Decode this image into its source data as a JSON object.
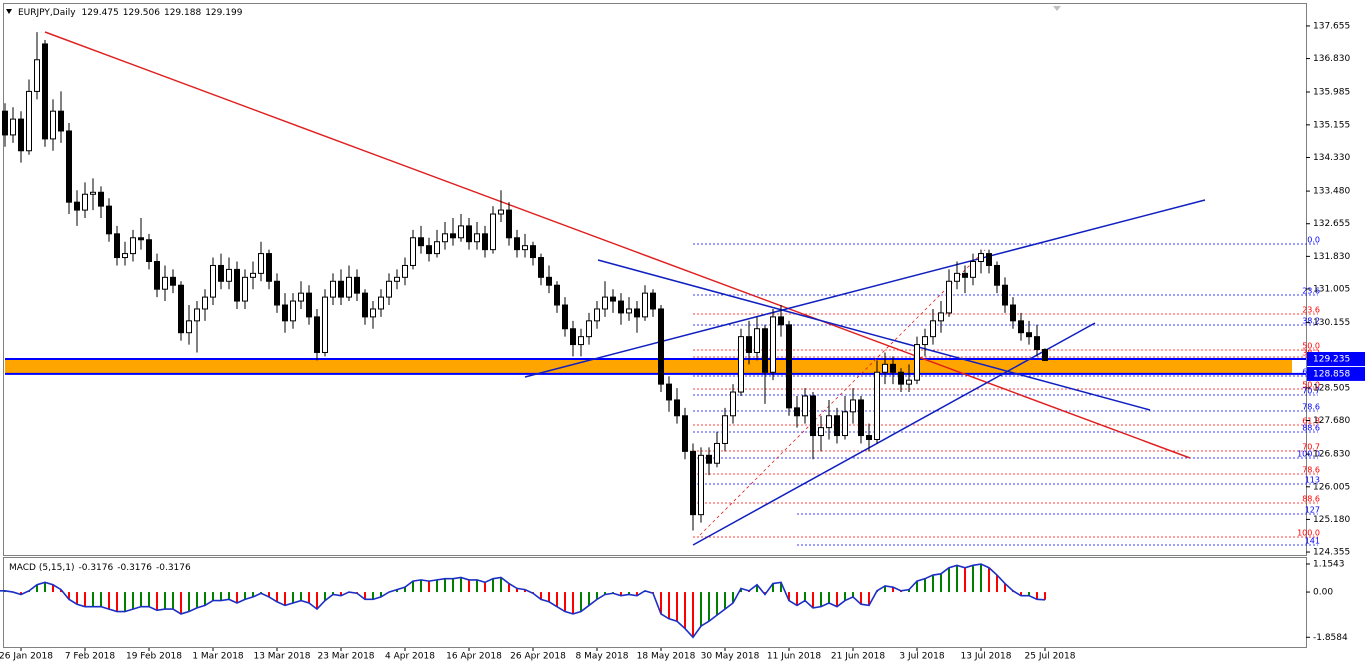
{
  "chart_data": [
    {
      "type": "candlestick",
      "title": "EURJPY,Daily",
      "categories": [
        null,
        null,
        null,
        "26 Jan 2018",
        null,
        null,
        null,
        null,
        null,
        null,
        null,
        "7 Feb 2018",
        null,
        null,
        null,
        null,
        null,
        null,
        null,
        "19 Feb 2018",
        null,
        null,
        null,
        null,
        null,
        null,
        null,
        "1 Mar 2018",
        null,
        null,
        null,
        null,
        null,
        null,
        null,
        "13 Mar 2018",
        null,
        null,
        null,
        null,
        null,
        null,
        null,
        "23 Mar 2018",
        null,
        null,
        null,
        null,
        null,
        null,
        null,
        "4 Apr 2018",
        null,
        null,
        null,
        null,
        null,
        null,
        null,
        "16 Apr 2018",
        null,
        null,
        null,
        null,
        null,
        null,
        null,
        "26 Apr 2018",
        null,
        null,
        null,
        null,
        null,
        null,
        null,
        "8 May 2018",
        null,
        null,
        null,
        null,
        null,
        null,
        null,
        "18 May 2018",
        null,
        null,
        null,
        null,
        null,
        null,
        null,
        "30 May 2018",
        null,
        null,
        null,
        null,
        null,
        null,
        null,
        "11 Jun 2018",
        null,
        null,
        null,
        null,
        null,
        null,
        null,
        "21 Jun 2018",
        null,
        null,
        null,
        null,
        null,
        null,
        null,
        "3 Jul 2018",
        null,
        null,
        null,
        null,
        null,
        null,
        null,
        "13 Jul 2018",
        null,
        null,
        null,
        null,
        null,
        null,
        null,
        "25 Jul 2018"
      ],
      "candles": [
        [
          135.9,
          136.2,
          135.2,
          135.5
        ],
        [
          135.5,
          135.7,
          134.6,
          134.9
        ],
        [
          134.9,
          135.6,
          134.7,
          135.3
        ],
        [
          135.3,
          135.5,
          134.2,
          134.5
        ],
        [
          134.5,
          136.3,
          134.4,
          136.0
        ],
        [
          136.0,
          137.5,
          135.8,
          136.8
        ],
        [
          137.2,
          137.3,
          134.6,
          134.8
        ],
        [
          134.8,
          135.8,
          134.5,
          135.5
        ],
        [
          135.5,
          136.0,
          134.7,
          135.0
        ],
        [
          135.0,
          135.2,
          132.9,
          133.2
        ],
        [
          133.2,
          133.5,
          132.6,
          133.0
        ],
        [
          133.0,
          133.7,
          132.8,
          133.4
        ],
        [
          133.4,
          133.8,
          133.0,
          133.45
        ],
        [
          133.45,
          133.6,
          132.8,
          133.1
        ],
        [
          133.1,
          133.3,
          132.2,
          132.4
        ],
        [
          132.4,
          132.6,
          131.6,
          131.8
        ],
        [
          131.8,
          132.2,
          131.6,
          131.9
        ],
        [
          131.9,
          132.5,
          131.7,
          132.3
        ],
        [
          132.3,
          132.8,
          132.0,
          132.25
        ],
        [
          132.25,
          132.4,
          131.5,
          131.7
        ],
        [
          131.7,
          131.9,
          130.8,
          131.0
        ],
        [
          131.0,
          131.6,
          130.7,
          131.3
        ],
        [
          131.3,
          131.5,
          130.9,
          131.1
        ],
        [
          131.1,
          131.2,
          129.7,
          129.9
        ],
        [
          129.9,
          130.6,
          129.6,
          130.2
        ],
        [
          130.2,
          130.7,
          129.4,
          130.5
        ],
        [
          130.5,
          131.0,
          130.2,
          130.8
        ],
        [
          130.8,
          131.8,
          130.6,
          131.6
        ],
        [
          131.6,
          131.9,
          131.0,
          131.2
        ],
        [
          131.2,
          131.8,
          131.0,
          131.5
        ],
        [
          131.5,
          131.7,
          130.5,
          130.7
        ],
        [
          130.7,
          131.5,
          130.5,
          131.3
        ],
        [
          131.3,
          131.7,
          131.0,
          131.4
        ],
        [
          131.4,
          132.2,
          131.2,
          131.9
        ],
        [
          131.9,
          132.0,
          131.0,
          131.2
        ],
        [
          131.2,
          131.4,
          130.4,
          130.6
        ],
        [
          130.6,
          130.9,
          129.9,
          130.2
        ],
        [
          130.2,
          130.9,
          130.0,
          130.7
        ],
        [
          130.7,
          131.2,
          130.5,
          130.9
        ],
        [
          130.9,
          131.1,
          130.1,
          130.3
        ],
        [
          130.3,
          130.5,
          129.2,
          129.4
        ],
        [
          129.4,
          131.0,
          129.3,
          130.8
        ],
        [
          130.8,
          131.4,
          130.6,
          131.2
        ],
        [
          131.2,
          131.5,
          130.6,
          130.8
        ],
        [
          130.8,
          131.6,
          130.7,
          131.3
        ],
        [
          131.3,
          131.5,
          130.7,
          130.9
        ],
        [
          130.9,
          131.0,
          130.1,
          130.3
        ],
        [
          130.3,
          130.7,
          130.0,
          130.5
        ],
        [
          130.5,
          131.0,
          130.3,
          130.8
        ],
        [
          130.8,
          131.4,
          130.6,
          131.2
        ],
        [
          131.2,
          131.5,
          131.0,
          131.3
        ],
        [
          131.3,
          131.8,
          131.1,
          131.6
        ],
        [
          131.6,
          132.5,
          131.5,
          132.3
        ],
        [
          132.3,
          132.6,
          131.9,
          132.1
        ],
        [
          132.1,
          132.3,
          131.7,
          131.9
        ],
        [
          131.9,
          132.5,
          131.8,
          132.2
        ],
        [
          132.2,
          132.7,
          132.0,
          132.4
        ],
        [
          132.4,
          132.8,
          132.1,
          132.3
        ],
        [
          132.3,
          132.9,
          132.2,
          132.6
        ],
        [
          132.6,
          132.8,
          132.0,
          132.2
        ],
        [
          132.2,
          132.7,
          132.0,
          132.4
        ],
        [
          132.4,
          132.6,
          131.8,
          132.0
        ],
        [
          132.0,
          133.1,
          131.9,
          132.9
        ],
        [
          132.9,
          133.5,
          132.7,
          133.0
        ],
        [
          133.0,
          133.2,
          132.1,
          132.3
        ],
        [
          132.3,
          132.5,
          131.8,
          132.0
        ],
        [
          132.0,
          132.4,
          131.8,
          132.1
        ],
        [
          132.1,
          132.2,
          131.6,
          131.8
        ],
        [
          131.8,
          131.9,
          131.1,
          131.3
        ],
        [
          131.3,
          131.6,
          130.9,
          131.1
        ],
        [
          131.1,
          131.2,
          130.4,
          130.6
        ],
        [
          130.6,
          130.8,
          129.8,
          130.0
        ],
        [
          130.0,
          130.2,
          129.3,
          129.6
        ],
        [
          129.6,
          130.0,
          129.3,
          129.8
        ],
        [
          129.8,
          130.4,
          129.6,
          130.2
        ],
        [
          130.2,
          130.7,
          130.0,
          130.5
        ],
        [
          130.5,
          131.2,
          130.3,
          130.8
        ],
        [
          130.8,
          131.0,
          130.4,
          130.7
        ],
        [
          130.7,
          130.9,
          130.1,
          130.4
        ],
        [
          130.4,
          130.8,
          130.2,
          130.5
        ],
        [
          130.5,
          130.7,
          129.9,
          130.3
        ],
        [
          130.3,
          131.1,
          130.2,
          130.9
        ],
        [
          130.9,
          131.0,
          130.3,
          130.5
        ],
        [
          130.5,
          130.6,
          128.4,
          128.6
        ],
        [
          128.6,
          128.8,
          127.9,
          128.2
        ],
        [
          128.2,
          128.5,
          127.6,
          127.8
        ],
        [
          127.8,
          128.0,
          126.7,
          126.9
        ],
        [
          126.9,
          127.1,
          124.9,
          125.3
        ],
        [
          125.3,
          127.0,
          125.1,
          126.8
        ],
        [
          126.8,
          127.0,
          126.3,
          126.6
        ],
        [
          126.6,
          127.4,
          126.5,
          127.1
        ],
        [
          127.1,
          128.0,
          126.9,
          127.8
        ],
        [
          127.8,
          128.6,
          127.6,
          128.4
        ],
        [
          128.4,
          130.0,
          128.3,
          129.8
        ],
        [
          129.8,
          130.2,
          129.1,
          129.4
        ],
        [
          129.4,
          130.3,
          129.2,
          130.0
        ],
        [
          130.0,
          130.1,
          128.1,
          128.9
        ],
        [
          128.9,
          130.5,
          128.7,
          130.3
        ],
        [
          130.3,
          130.6,
          129.8,
          130.1
        ],
        [
          130.1,
          130.2,
          127.8,
          128.0
        ],
        [
          128.0,
          128.3,
          127.5,
          127.8
        ],
        [
          127.8,
          128.5,
          127.6,
          128.3
        ],
        [
          128.3,
          128.4,
          126.7,
          127.3
        ],
        [
          127.3,
          127.8,
          126.9,
          127.5
        ],
        [
          127.5,
          128.2,
          127.2,
          127.8
        ],
        [
          127.8,
          128.0,
          127.1,
          127.3
        ],
        [
          127.3,
          128.3,
          127.2,
          127.9
        ],
        [
          127.9,
          128.5,
          127.6,
          128.2
        ],
        [
          128.2,
          128.3,
          127.1,
          127.3
        ],
        [
          127.3,
          127.6,
          126.9,
          127.2
        ],
        [
          127.2,
          129.2,
          127.1,
          128.9
        ],
        [
          128.9,
          129.4,
          128.6,
          129.1
        ],
        [
          129.1,
          129.3,
          128.6,
          128.9
        ],
        [
          128.9,
          129.0,
          128.4,
          128.6
        ],
        [
          128.6,
          129.1,
          128.4,
          128.7
        ],
        [
          128.7,
          129.8,
          128.6,
          129.6
        ],
        [
          129.6,
          130.0,
          129.3,
          129.8
        ],
        [
          129.8,
          130.5,
          129.6,
          130.2
        ],
        [
          130.2,
          130.7,
          129.9,
          130.4
        ],
        [
          130.4,
          131.5,
          130.3,
          131.2
        ],
        [
          131.2,
          131.7,
          131.0,
          131.4
        ],
        [
          131.4,
          131.6,
          130.9,
          131.3
        ],
        [
          131.3,
          131.9,
          131.1,
          131.7
        ],
        [
          131.7,
          132.0,
          131.4,
          131.9
        ],
        [
          131.9,
          132.0,
          131.4,
          131.6
        ],
        [
          131.6,
          131.7,
          130.9,
          131.1
        ],
        [
          131.1,
          131.3,
          130.4,
          130.6
        ],
        [
          130.6,
          130.8,
          130.0,
          130.2
        ],
        [
          130.2,
          130.4,
          129.7,
          129.9
        ],
        [
          129.9,
          130.2,
          129.6,
          129.8
        ],
        [
          129.8,
          130.1,
          129.3,
          129.475
        ],
        [
          129.475,
          129.506,
          129.188,
          129.199
        ]
      ],
      "ylim": [
        124.28,
        138.21
      ],
      "yticks": [
        137.655,
        {
          "value": 136.83,
          "label": "136.830"
        },
        135.985,
        135.155,
        {
          "value": 134.33,
          "label": "134.330"
        },
        {
          "value": 133.48,
          "label": "133.480"
        },
        132.655,
        {
          "value": 131.83,
          "label": "131.830"
        },
        131.005,
        130.155,
        128.505,
        {
          "value": 127.68,
          "label": "127.680"
        },
        {
          "value": 126.83,
          "label": "126.830"
        },
        126.005,
        {
          "value": 125.18,
          "label": "125.180"
        },
        124.355
      ],
      "levels": [
        129.235,
        128.858
      ],
      "level_color": "#0000ff",
      "band_color": "#ffa500",
      "fib_levels": [
        {
          "label": "0.0",
          "color": "#0000ff"
        },
        {
          "label": "23.6",
          "color": "#0000ff"
        },
        {
          "label": "23.6",
          "color": "#ff0000"
        },
        {
          "label": "38.2",
          "color": "#0000ff"
        },
        {
          "label": "50.0",
          "color": "#ff0000"
        },
        {
          "label": "38.2",
          "color": "#ff0000"
        },
        {
          "label": "61.8",
          "color": "#0000ff"
        },
        {
          "label": "50.0",
          "color": "#ff0000"
        },
        {
          "label": "70.7",
          "color": "#0000ff"
        },
        {
          "label": "78.6",
          "color": "#0000ff"
        },
        {
          "label": "61.8",
          "color": "#ff0000"
        },
        {
          "label": "88.6",
          "color": "#0000ff"
        },
        {
          "label": "70.7",
          "color": "#ff0000"
        },
        {
          "label": "100.0",
          "color": "#0000ff"
        },
        {
          "label": "78.6",
          "color": "#ff0000"
        },
        {
          "label": "113",
          "color": "#0000ff"
        },
        {
          "label": "88.6",
          "color": "#ff0000"
        },
        {
          "label": "127",
          "color": "#0000ff"
        },
        {
          "label": "100.0",
          "color": "#ff0000"
        },
        {
          "label": "141",
          "color": "#0000ff"
        }
      ]
    },
    {
      "type": "macd",
      "title": "MACD (5,15,1)",
      "values": [
        0.05,
        0.05,
        0.0,
        -0.1,
        0.05,
        0.3,
        0.4,
        0.3,
        0.1,
        -0.3,
        -0.5,
        -0.6,
        -0.6,
        -0.6,
        -0.7,
        -0.8,
        -0.8,
        -0.7,
        -0.6,
        -0.6,
        -0.75,
        -0.7,
        -0.7,
        -0.9,
        -0.8,
        -0.65,
        -0.55,
        -0.35,
        -0.35,
        -0.3,
        -0.45,
        -0.3,
        -0.2,
        -0.05,
        -0.2,
        -0.4,
        -0.55,
        -0.45,
        -0.35,
        -0.45,
        -0.7,
        -0.35,
        -0.1,
        -0.15,
        0.0,
        -0.05,
        -0.3,
        -0.3,
        -0.2,
        0.0,
        0.1,
        0.2,
        0.45,
        0.5,
        0.45,
        0.5,
        0.55,
        0.55,
        0.6,
        0.5,
        0.5,
        0.4,
        0.55,
        0.6,
        0.35,
        0.15,
        0.1,
        -0.05,
        -0.3,
        -0.4,
        -0.6,
        -0.8,
        -0.9,
        -0.8,
        -0.55,
        -0.3,
        -0.1,
        -0.05,
        -0.15,
        -0.1,
        -0.15,
        0.05,
        -0.05,
        -0.9,
        -1.1,
        -1.2,
        -1.5,
        -1.86,
        -1.4,
        -1.2,
        -0.95,
        -0.7,
        -0.45,
        0.15,
        0.05,
        0.3,
        -0.1,
        0.35,
        0.4,
        -0.35,
        -0.55,
        -0.35,
        -0.65,
        -0.6,
        -0.45,
        -0.6,
        -0.35,
        -0.2,
        -0.5,
        -0.55,
        0.05,
        0.25,
        0.2,
        0.05,
        0.1,
        0.45,
        0.55,
        0.7,
        0.75,
        1.0,
        1.1,
        1.0,
        1.1,
        1.15,
        1.0,
        0.7,
        0.35,
        0.05,
        -0.15,
        -0.15,
        -0.3,
        -0.3176
      ],
      "ylim": [
        -2.3,
        1.4
      ],
      "yticks": [
        1.1543,
        {
          "value": 0,
          "label": "0.00"
        },
        -1.8584
      ],
      "color": "#1c2fc4",
      "up_color": "#008000",
      "down_color": "#ff0000"
    }
  ]
}
